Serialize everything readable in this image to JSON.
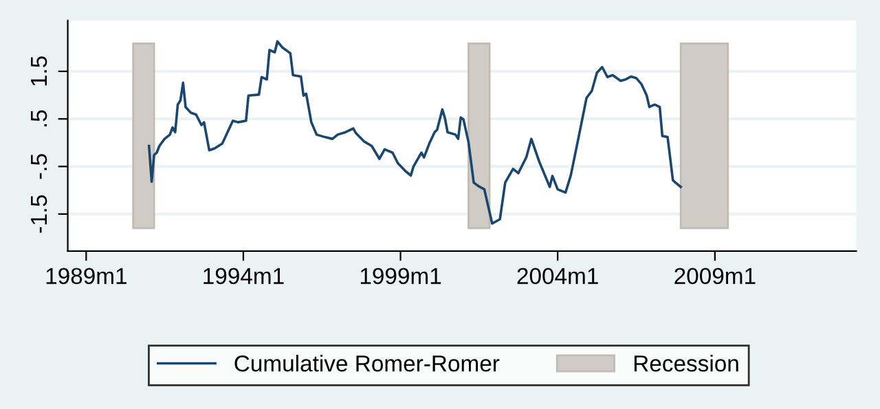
{
  "chart_data": {
    "type": "line",
    "x": [
      "1991-01",
      "1991-02",
      "1991-03",
      "1991-04",
      "1991-05",
      "1991-07",
      "1991-09",
      "1991-10",
      "1991-11",
      "1991-12",
      "1992-01",
      "1992-02",
      "1992-03",
      "1992-05",
      "1992-07",
      "1992-09",
      "1992-10",
      "1992-12",
      "1993-02",
      "1993-05",
      "1993-07",
      "1993-09",
      "1993-11",
      "1994-02",
      "1994-03",
      "1994-07",
      "1994-08",
      "1994-10",
      "1994-11",
      "1995-01",
      "1995-02",
      "1995-04",
      "1995-07",
      "1995-08",
      "1995-11",
      "1995-12",
      "1996-01",
      "1996-03",
      "1996-05",
      "1996-08",
      "1996-11",
      "1997-01",
      "1997-04",
      "1997-07",
      "1997-08",
      "1997-11",
      "1998-02",
      "1998-05",
      "1998-07",
      "1998-10",
      "1998-12",
      "1999-03",
      "1999-05",
      "1999-06",
      "1999-09",
      "1999-10",
      "1999-12",
      "2000-02",
      "2000-03",
      "2000-05",
      "2000-06",
      "2000-07",
      "2000-10",
      "2000-11",
      "2000-12",
      "2001-01",
      "2001-03",
      "2001-05",
      "2001-07",
      "2001-09",
      "2001-12",
      "2002-03",
      "2002-05",
      "2002-08",
      "2002-10",
      "2003-01",
      "2003-03",
      "2003-06",
      "2003-10",
      "2003-11",
      "2004-01",
      "2004-04",
      "2004-06",
      "2004-09",
      "2004-12",
      "2005-02",
      "2005-04",
      "2005-06",
      "2005-08",
      "2005-10",
      "2006-01",
      "2006-03",
      "2006-05",
      "2006-07",
      "2006-09",
      "2006-11",
      "2006-12",
      "2007-02",
      "2007-04",
      "2007-05",
      "2007-07",
      "2007-09",
      "2007-10",
      "2007-12"
    ],
    "series": [
      {
        "name": "Cumulative Romer-Romer",
        "color": "#1a476f",
        "values": [
          -0.07,
          -0.82,
          -0.26,
          -0.21,
          -0.07,
          0.08,
          0.17,
          0.32,
          0.22,
          0.8,
          0.89,
          1.26,
          0.75,
          0.63,
          0.59,
          0.37,
          0.43,
          -0.16,
          -0.12,
          -0.02,
          0.22,
          0.46,
          0.43,
          0.46,
          0.99,
          1.01,
          1.38,
          1.33,
          1.95,
          1.9,
          2.13,
          2.0,
          1.88,
          1.42,
          1.39,
          0.99,
          1.03,
          0.43,
          0.17,
          0.12,
          0.08,
          0.17,
          0.22,
          0.3,
          0.2,
          0.03,
          -0.07,
          -0.34,
          -0.14,
          -0.21,
          -0.43,
          -0.6,
          -0.69,
          -0.5,
          -0.21,
          -0.31,
          -0.02,
          0.22,
          0.27,
          0.7,
          0.51,
          0.22,
          0.17,
          0.08,
          0.53,
          0.49,
          0.01,
          -0.84,
          -0.92,
          -0.98,
          -1.7,
          -1.61,
          -0.84,
          -0.55,
          -0.64,
          -0.31,
          0.08,
          -0.4,
          -0.93,
          -0.7,
          -0.98,
          -1.05,
          -0.69,
          0.12,
          0.94,
          1.09,
          1.47,
          1.59,
          1.38,
          1.42,
          1.3,
          1.33,
          1.39,
          1.36,
          1.23,
          0.99,
          0.75,
          0.8,
          0.75,
          0.14,
          0.12,
          -0.79,
          -0.84,
          -0.93
        ]
      }
    ],
    "bands": [
      {
        "axis": "x",
        "from": "1990-07",
        "to": "1991-03",
        "label": "Recession",
        "color": "#d0ccc5"
      },
      {
        "axis": "x",
        "from": "2001-03",
        "to": "2001-11",
        "color": "#d0ccc5"
      },
      {
        "axis": "x",
        "from": "2007-12",
        "to": "2009-06",
        "color": "#d0ccc5"
      }
    ],
    "xlim": [
      "1988-06",
      "2013-07"
    ],
    "xticks": [
      {
        "value": "1989-01",
        "label": "1989m1"
      },
      {
        "value": "1994-01",
        "label": "1994m1"
      },
      {
        "value": "1999-01",
        "label": "1999m1"
      },
      {
        "value": "2004-01",
        "label": "2004m1"
      },
      {
        "value": "2009-01",
        "label": "2009m1"
      }
    ],
    "ylim": [
      -2.28,
      2.57
    ],
    "yticks": [
      {
        "value": -1.5,
        "label": "-1.5"
      },
      {
        "value": -0.5,
        "label": "-.5"
      },
      {
        "value": 0.5,
        "label": ".5"
      },
      {
        "value": 1.5,
        "label": "1.5"
      }
    ],
    "grid": "y",
    "legend": "bottom",
    "marker": "none",
    "line_style": "solid"
  }
}
